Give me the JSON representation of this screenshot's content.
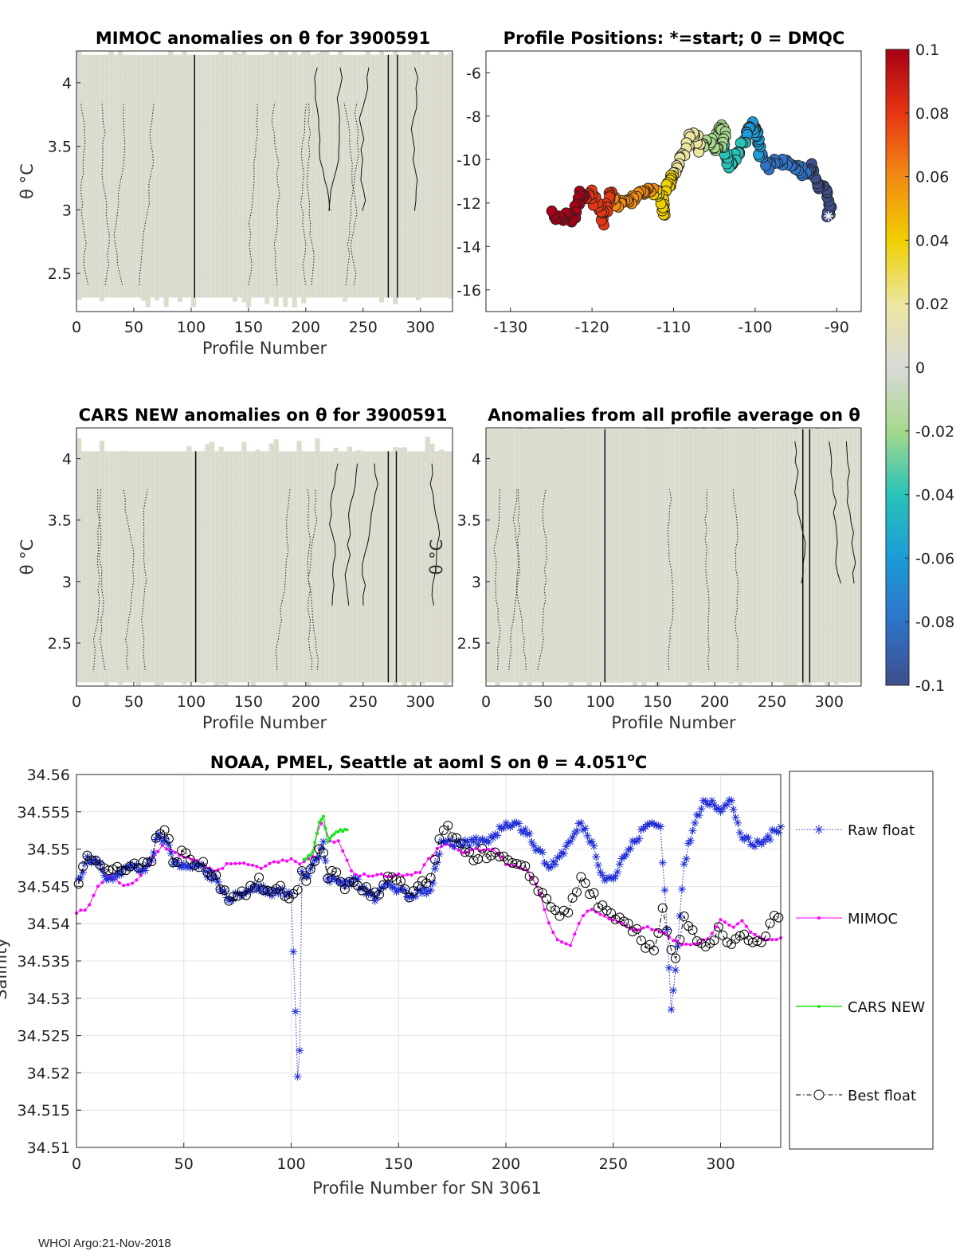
{
  "footer": "WHOI Argo:21-Nov-2018",
  "colorbar": {
    "ticks": [
      "0.1",
      "0.08",
      "0.06",
      "0.04",
      "0.02",
      "0",
      "-0.02",
      "-0.04",
      "-0.06",
      "-0.08",
      "-0.1"
    ]
  },
  "chart_data": [
    {
      "id": "mimoc_anom",
      "type": "heatmap",
      "title": "MIMOC anomalies on θ  for 3900591",
      "xlabel": "Profile Number",
      "ylabel": "θ °C",
      "xlim": [
        0,
        328
      ],
      "ylim": [
        2.2,
        4.25
      ],
      "xticks": [
        "0",
        "50",
        "100",
        "150",
        "200",
        "250",
        "300"
      ],
      "yticks": [
        "2.5",
        "3",
        "3.5",
        "4"
      ]
    },
    {
      "id": "positions",
      "type": "scatter",
      "title": "Profile Positions: *=start; 0 = DMQC",
      "xlim": [
        -133,
        -87
      ],
      "ylim": [
        -17,
        -5
      ],
      "xticks": [
        "-130",
        "-120",
        "-110",
        "-100",
        "-90"
      ],
      "yticks": [
        "-6",
        "-8",
        "-10",
        "-12",
        "-14",
        "-16"
      ],
      "track_lon": [
        -91,
        -90.8,
        -91.3,
        -92,
        -92.7,
        -93,
        -93.8,
        -94.5,
        -95.5,
        -96.5,
        -97.5,
        -98.5,
        -99.3,
        -99.6,
        -99.9,
        -100.3,
        -100.5,
        -100.9,
        -101.3,
        -101.9,
        -102.5,
        -103.1,
        -103.5,
        -104,
        -104.5,
        -104.2,
        -103.8,
        -104.6,
        -105.4,
        -106.1,
        -106.7,
        -107.2,
        -107.8,
        -108.5,
        -109.1,
        -109.7,
        -110.2,
        -110.3,
        -110.9,
        -111.3,
        -111.1,
        -111.7,
        -112.6,
        -113.4,
        -114.2,
        -115.1,
        -116.1,
        -117,
        -117.6,
        -118.1,
        -118.5,
        -118.9,
        -119.5,
        -120.1,
        -120.9,
        -121.5,
        -121.9,
        -122.4,
        -123.2,
        -124,
        -125
      ],
      "track_lat": [
        -12.6,
        -12.1,
        -11.4,
        -11.3,
        -11.0,
        -10.3,
        -10.8,
        -10.4,
        -10.2,
        -10.2,
        -10.1,
        -10.3,
        -9.8,
        -9.1,
        -8.6,
        -8.7,
        -8.4,
        -8.7,
        -9.1,
        -9.6,
        -10.0,
        -10.3,
        -9.7,
        -9.3,
        -8.9,
        -8.4,
        -9.0,
        -9.5,
        -9.2,
        -9.1,
        -9.6,
        -9.0,
        -8.9,
        -9.4,
        -10.0,
        -10.5,
        -10.7,
        -11.1,
        -11.2,
        -11.8,
        -12.6,
        -11.8,
        -11.4,
        -11.5,
        -11.6,
        -11.9,
        -11.9,
        -12.1,
        -11.5,
        -11.8,
        -13.0,
        -12.4,
        -12.1,
        -11.5,
        -11.7,
        -11.6,
        -12.3,
        -12.7,
        -12.6,
        -12.7,
        -12.4
      ]
    },
    {
      "id": "cars_anom",
      "type": "heatmap",
      "title": "CARS NEW anomalies on θ for 3900591",
      "xlabel": "Profile Number",
      "ylabel": "θ °C",
      "xlim": [
        0,
        328
      ],
      "ylim": [
        2.15,
        4.25
      ],
      "xticks": [
        "0",
        "50",
        "100",
        "150",
        "200",
        "250",
        "300"
      ],
      "yticks": [
        "2.5",
        "3",
        "3.5",
        "4"
      ]
    },
    {
      "id": "avg_anom",
      "type": "heatmap",
      "title": "Anomalies from all profile average on θ",
      "xlabel": "Profile Number",
      "ylabel": "θ °C",
      "xlim": [
        0,
        328
      ],
      "ylim": [
        2.15,
        4.25
      ],
      "xticks": [
        "0",
        "50",
        "100",
        "150",
        "200",
        "250",
        "300"
      ],
      "yticks": [
        "2.5",
        "3",
        "3.5",
        "4"
      ]
    },
    {
      "id": "salinity",
      "type": "line",
      "title": "NOAA, PMEL, Seattle at aoml S on θ = 4.051°C",
      "title_main": "NOAA, PMEL, Seattle at aoml S on θ = 4.051",
      "title_sup": "o",
      "title_unit": "C",
      "xlabel": "Profile Number for SN 3061",
      "ylabel": "Salinity",
      "xlim": [
        0,
        328
      ],
      "ylim": [
        34.51,
        34.56
      ],
      "xticks": [
        "0",
        "50",
        "100",
        "150",
        "200",
        "250",
        "300"
      ],
      "yticks": [
        "34.51",
        "34.515",
        "34.52",
        "34.525",
        "34.53",
        "34.535",
        "34.54",
        "34.545",
        "34.55",
        "34.555",
        "34.56"
      ],
      "legend": [
        "Raw float",
        "MIMOC",
        "CARS NEW",
        "Best float"
      ],
      "series_keyframes": {
        "raw_x": [
          1,
          5,
          10,
          15,
          20,
          25,
          30,
          35,
          38,
          42,
          45,
          50,
          55,
          60,
          65,
          70,
          75,
          80,
          85,
          90,
          95,
          100,
          103,
          104,
          105,
          107,
          110,
          113,
          115,
          117,
          120,
          125,
          130,
          135,
          140,
          145,
          150,
          155,
          160,
          165,
          170,
          172,
          175,
          180,
          185,
          190,
          195,
          200,
          205,
          210,
          215,
          220,
          225,
          230,
          235,
          240,
          245,
          250,
          255,
          260,
          265,
          268,
          272,
          274,
          277,
          280,
          283,
          288,
          292,
          296,
          300,
          305,
          310,
          315,
          320,
          328
        ],
        "raw_y": [
          34.546,
          34.549,
          34.548,
          34.546,
          34.547,
          34.548,
          34.547,
          34.5485,
          34.552,
          34.551,
          34.548,
          34.548,
          34.548,
          34.547,
          34.546,
          34.5435,
          34.544,
          34.5445,
          34.545,
          34.544,
          34.5445,
          34.544,
          34.5195,
          34.523,
          34.547,
          34.5465,
          34.548,
          34.549,
          34.551,
          34.546,
          34.546,
          34.545,
          34.546,
          34.544,
          34.5435,
          34.5455,
          34.5445,
          34.5435,
          34.5445,
          34.5445,
          34.551,
          34.551,
          34.5505,
          34.5505,
          34.551,
          34.551,
          34.552,
          34.5535,
          34.5535,
          34.552,
          34.55,
          34.5475,
          34.549,
          34.551,
          34.5535,
          34.551,
          34.5465,
          34.546,
          34.549,
          34.551,
          34.553,
          34.5535,
          34.553,
          34.5445,
          34.5285,
          34.537,
          34.548,
          34.5535,
          34.5565,
          34.5565,
          34.555,
          34.5565,
          34.5515,
          34.5505,
          34.551,
          34.553
        ],
        "mimoc_x": [
          0,
          5,
          10,
          15,
          20,
          25,
          30,
          35,
          40,
          45,
          50,
          55,
          60,
          65,
          70,
          75,
          80,
          85,
          90,
          95,
          100,
          103,
          105,
          110,
          113,
          115,
          118,
          122,
          125,
          128,
          132,
          140,
          145,
          150,
          155,
          160,
          165,
          170,
          175,
          180,
          185,
          190,
          195,
          200,
          205,
          210,
          215,
          220,
          225,
          230,
          235,
          240,
          245,
          250,
          255,
          260,
          265,
          270,
          275,
          280,
          285,
          290,
          295,
          300,
          305,
          310,
          315,
          320,
          328
        ],
        "mimoc_y": [
          34.5415,
          34.542,
          34.545,
          34.5465,
          34.5455,
          34.545,
          34.5465,
          34.5485,
          34.5505,
          34.5495,
          34.549,
          34.5485,
          34.5475,
          34.547,
          34.548,
          34.548,
          34.548,
          34.5475,
          34.548,
          34.5485,
          34.5485,
          34.548,
          34.548,
          34.549,
          34.5535,
          34.5535,
          34.551,
          34.551,
          34.549,
          34.547,
          34.5465,
          34.5465,
          34.5465,
          34.5465,
          34.5465,
          34.547,
          34.549,
          34.5505,
          34.5505,
          34.5495,
          34.55,
          34.55,
          34.55,
          34.548,
          34.5475,
          34.547,
          34.545,
          34.54,
          34.5375,
          34.537,
          34.541,
          34.542,
          34.541,
          34.5405,
          34.54,
          34.539,
          34.5395,
          34.539,
          34.5385,
          34.5375,
          34.537,
          34.5375,
          34.538,
          34.5405,
          34.5395,
          34.5405,
          34.5385,
          34.538,
          34.538
        ],
        "cars_x": [
          106,
          108,
          110,
          113,
          115,
          117,
          120,
          123,
          126
        ],
        "cars_y": [
          34.5485,
          34.549,
          34.5495,
          34.5535,
          34.5545,
          34.551,
          34.552,
          34.5525,
          34.5525
        ],
        "best_x": [
          1,
          5,
          10,
          15,
          20,
          25,
          30,
          35,
          38,
          42,
          45,
          50,
          55,
          60,
          65,
          70,
          75,
          80,
          85,
          90,
          95,
          100,
          103,
          105,
          107,
          110,
          113,
          115,
          117,
          120,
          125,
          130,
          135,
          140,
          145,
          150,
          155,
          160,
          165,
          170,
          172,
          175,
          180,
          185,
          190,
          195,
          200,
          205,
          210,
          215,
          220,
          225,
          230,
          235,
          240,
          245,
          250,
          255,
          260,
          265,
          270,
          273,
          276,
          278,
          280,
          283,
          288,
          292,
          296,
          300,
          305,
          310,
          315,
          320,
          328
        ],
        "best_y": [
          34.546,
          34.5495,
          34.548,
          34.547,
          34.5475,
          34.548,
          34.5475,
          34.549,
          34.5525,
          34.552,
          34.5485,
          34.5495,
          34.548,
          34.5475,
          34.5465,
          34.5435,
          34.544,
          34.5445,
          34.5455,
          34.544,
          34.5445,
          34.5435,
          34.5445,
          34.547,
          34.546,
          34.5485,
          34.5495,
          34.549,
          34.5465,
          34.547,
          34.545,
          34.5455,
          34.5445,
          34.5435,
          34.546,
          34.5455,
          34.5435,
          34.5455,
          34.5455,
          34.5525,
          34.5535,
          34.551,
          34.5505,
          34.549,
          34.5495,
          34.549,
          34.5485,
          34.5475,
          34.547,
          34.545,
          34.5425,
          34.5415,
          34.542,
          34.546,
          34.544,
          34.542,
          34.5405,
          34.54,
          34.539,
          34.537,
          34.537,
          34.5425,
          34.5375,
          34.535,
          34.5365,
          34.541,
          34.538,
          34.5365,
          34.537,
          34.5395,
          34.537,
          34.5385,
          34.537,
          34.538,
          34.542
        ]
      }
    }
  ]
}
